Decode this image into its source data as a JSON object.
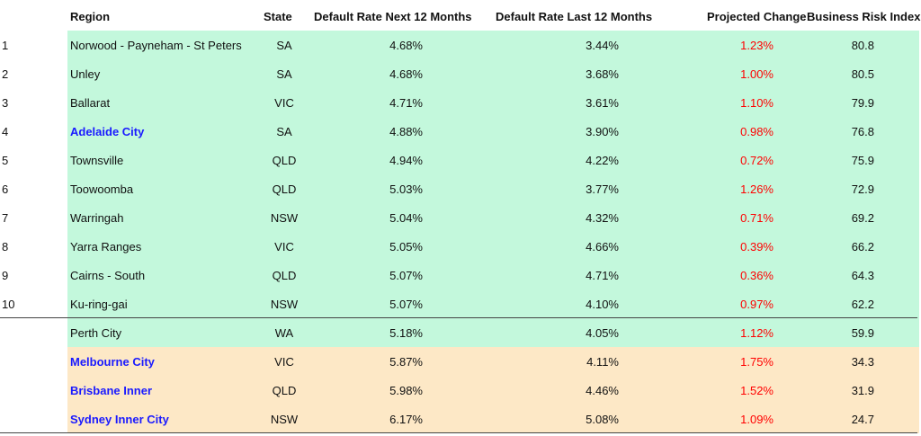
{
  "colors": {
    "green_band": "#c3f8dc",
    "orange_band": "#fde8c6",
    "highlight_text": "#1a1aff",
    "change_text": "#ff0000"
  },
  "headers": {
    "rank": "",
    "region": "Region",
    "state": "State",
    "next": "Default Rate Next 12 Months",
    "last": "Default Rate Last 12 Months",
    "proj": "Projected Change",
    "risk": "Business Risk Index"
  },
  "rows": [
    {
      "rank": "1",
      "region": "Norwood - Payneham - St Peters",
      "state": "SA",
      "next": "4.68%",
      "last": "3.44%",
      "proj": "1.23%",
      "risk": "80.8",
      "band": "green",
      "highlight": false
    },
    {
      "rank": "2",
      "region": "Unley",
      "state": "SA",
      "next": "4.68%",
      "last": "3.68%",
      "proj": "1.00%",
      "risk": "80.5",
      "band": "green",
      "highlight": false
    },
    {
      "rank": "3",
      "region": "Ballarat",
      "state": "VIC",
      "next": "4.71%",
      "last": "3.61%",
      "proj": "1.10%",
      "risk": "79.9",
      "band": "green",
      "highlight": false
    },
    {
      "rank": "4",
      "region": "Adelaide City",
      "state": "SA",
      "next": "4.88%",
      "last": "3.90%",
      "proj": "0.98%",
      "risk": "76.8",
      "band": "green",
      "highlight": true
    },
    {
      "rank": "5",
      "region": "Townsville",
      "state": "QLD",
      "next": "4.94%",
      "last": "4.22%",
      "proj": "0.72%",
      "risk": "75.9",
      "band": "green",
      "highlight": false
    },
    {
      "rank": "6",
      "region": "Toowoomba",
      "state": "QLD",
      "next": "5.03%",
      "last": "3.77%",
      "proj": "1.26%",
      "risk": "72.9",
      "band": "green",
      "highlight": false
    },
    {
      "rank": "7",
      "region": "Warringah",
      "state": "NSW",
      "next": "5.04%",
      "last": "4.32%",
      "proj": "0.71%",
      "risk": "69.2",
      "band": "green",
      "highlight": false
    },
    {
      "rank": "8",
      "region": "Yarra Ranges",
      "state": "VIC",
      "next": "5.05%",
      "last": "4.66%",
      "proj": "0.39%",
      "risk": "66.2",
      "band": "green",
      "highlight": false
    },
    {
      "rank": "9",
      "region": "Cairns - South",
      "state": "QLD",
      "next": "5.07%",
      "last": "4.71%",
      "proj": "0.36%",
      "risk": "64.3",
      "band": "green",
      "highlight": false
    },
    {
      "rank": "10",
      "region": "Ku-ring-gai",
      "state": "NSW",
      "next": "5.07%",
      "last": "4.10%",
      "proj": "0.97%",
      "risk": "62.2",
      "band": "green",
      "highlight": false
    },
    {
      "rank": "",
      "region": "Perth City",
      "state": "WA",
      "next": "5.18%",
      "last": "4.05%",
      "proj": "1.12%",
      "risk": "59.9",
      "band": "green",
      "highlight": false
    },
    {
      "rank": "",
      "region": "Melbourne City",
      "state": "VIC",
      "next": "5.87%",
      "last": "4.11%",
      "proj": "1.75%",
      "risk": "34.3",
      "band": "orange",
      "highlight": true
    },
    {
      "rank": "",
      "region": "Brisbane Inner",
      "state": "QLD",
      "next": "5.98%",
      "last": "4.46%",
      "proj": "1.52%",
      "risk": "31.9",
      "band": "orange",
      "highlight": true
    },
    {
      "rank": "",
      "region": "Sydney Inner City",
      "state": "NSW",
      "next": "6.17%",
      "last": "5.08%",
      "proj": "1.09%",
      "risk": "24.7",
      "band": "orange",
      "highlight": true
    }
  ]
}
